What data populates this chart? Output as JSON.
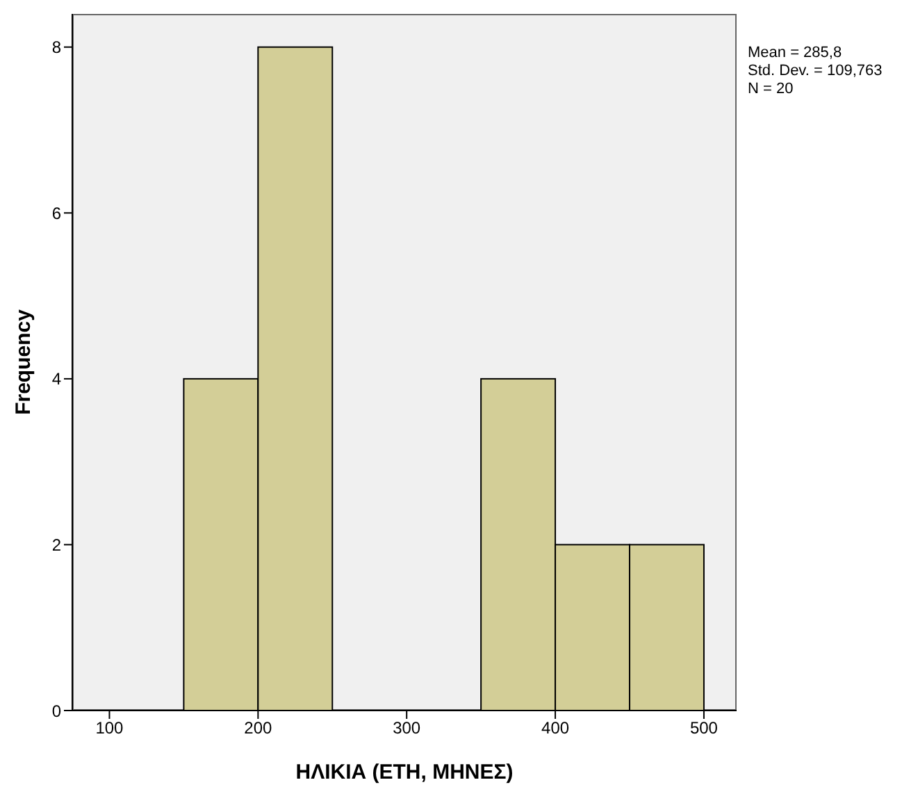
{
  "chart_data": {
    "type": "histogram",
    "xlabel": "ΗΛΙΚΙΑ (ΕΤΗ, ΜΗΝΕΣ)",
    "ylabel": "Frequency",
    "bins": [
      150,
      200,
      250,
      300,
      350,
      400,
      450,
      500
    ],
    "values": [
      4,
      8,
      0,
      0,
      4,
      2,
      2
    ],
    "color": "#d3ce97",
    "xlim": [
      75,
      522
    ],
    "xticks": [
      100,
      200,
      300,
      400,
      500
    ],
    "ylim": [
      0,
      8.4
    ],
    "yticks": [
      0,
      2,
      4,
      6,
      8
    ],
    "grid": false,
    "annotations": [
      "Mean = 285,8",
      "Std. Dev. = 109,763",
      "N = 20"
    ]
  }
}
